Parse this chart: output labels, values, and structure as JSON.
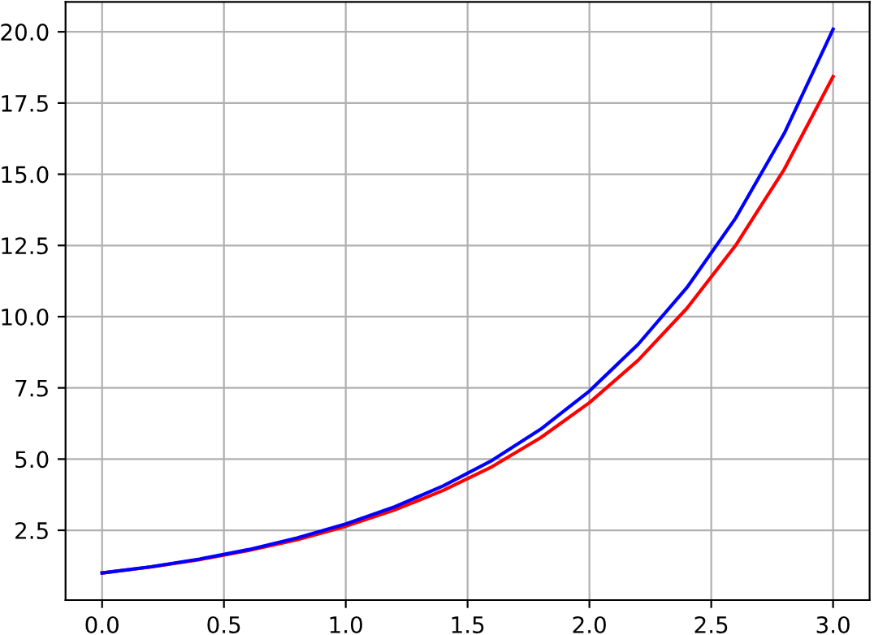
{
  "chart_data": {
    "type": "line",
    "x": [
      0.0,
      0.2,
      0.4,
      0.6,
      0.8,
      1.0,
      1.2,
      1.4,
      1.6,
      1.8,
      2.0,
      2.2,
      2.4,
      2.6,
      2.8,
      3.0
    ],
    "series": [
      {
        "color": "#ff0000",
        "values": [
          1.0,
          1.21,
          1.47,
          1.79,
          2.17,
          2.64,
          3.21,
          3.9,
          4.73,
          5.75,
          6.98,
          8.47,
          10.29,
          12.5,
          15.18,
          18.43
        ]
      },
      {
        "color": "#0000ff",
        "values": [
          1.0,
          1.22,
          1.49,
          1.82,
          2.23,
          2.72,
          3.32,
          4.06,
          4.95,
          6.05,
          7.39,
          9.03,
          11.02,
          13.46,
          16.44,
          20.09
        ]
      }
    ],
    "xlim": [
      -0.15,
      3.15
    ],
    "ylim": [
      0.05,
      21.05
    ],
    "xticks": [
      {
        "value": 0,
        "label": "0.0"
      },
      {
        "value": 0.5,
        "label": "0.5"
      },
      {
        "value": 1,
        "label": "1.0"
      },
      {
        "value": 1.5,
        "label": "1.5"
      },
      {
        "value": 2,
        "label": "2.0"
      },
      {
        "value": 2.5,
        "label": "2.5"
      },
      {
        "value": 3,
        "label": "3.0"
      }
    ],
    "yticks": [
      {
        "value": 2.5,
        "label": "2.5"
      },
      {
        "value": 5,
        "label": "5.0"
      },
      {
        "value": 7.5,
        "label": "7.5"
      },
      {
        "value": 10,
        "label": "10.0"
      },
      {
        "value": 12.5,
        "label": "12.5"
      },
      {
        "value": 15,
        "label": "15.0"
      },
      {
        "value": 17.5,
        "label": "17.5"
      },
      {
        "value": 20,
        "label": "20.0"
      }
    ],
    "grid": true,
    "line_style": "solid",
    "marker": "none"
  }
}
